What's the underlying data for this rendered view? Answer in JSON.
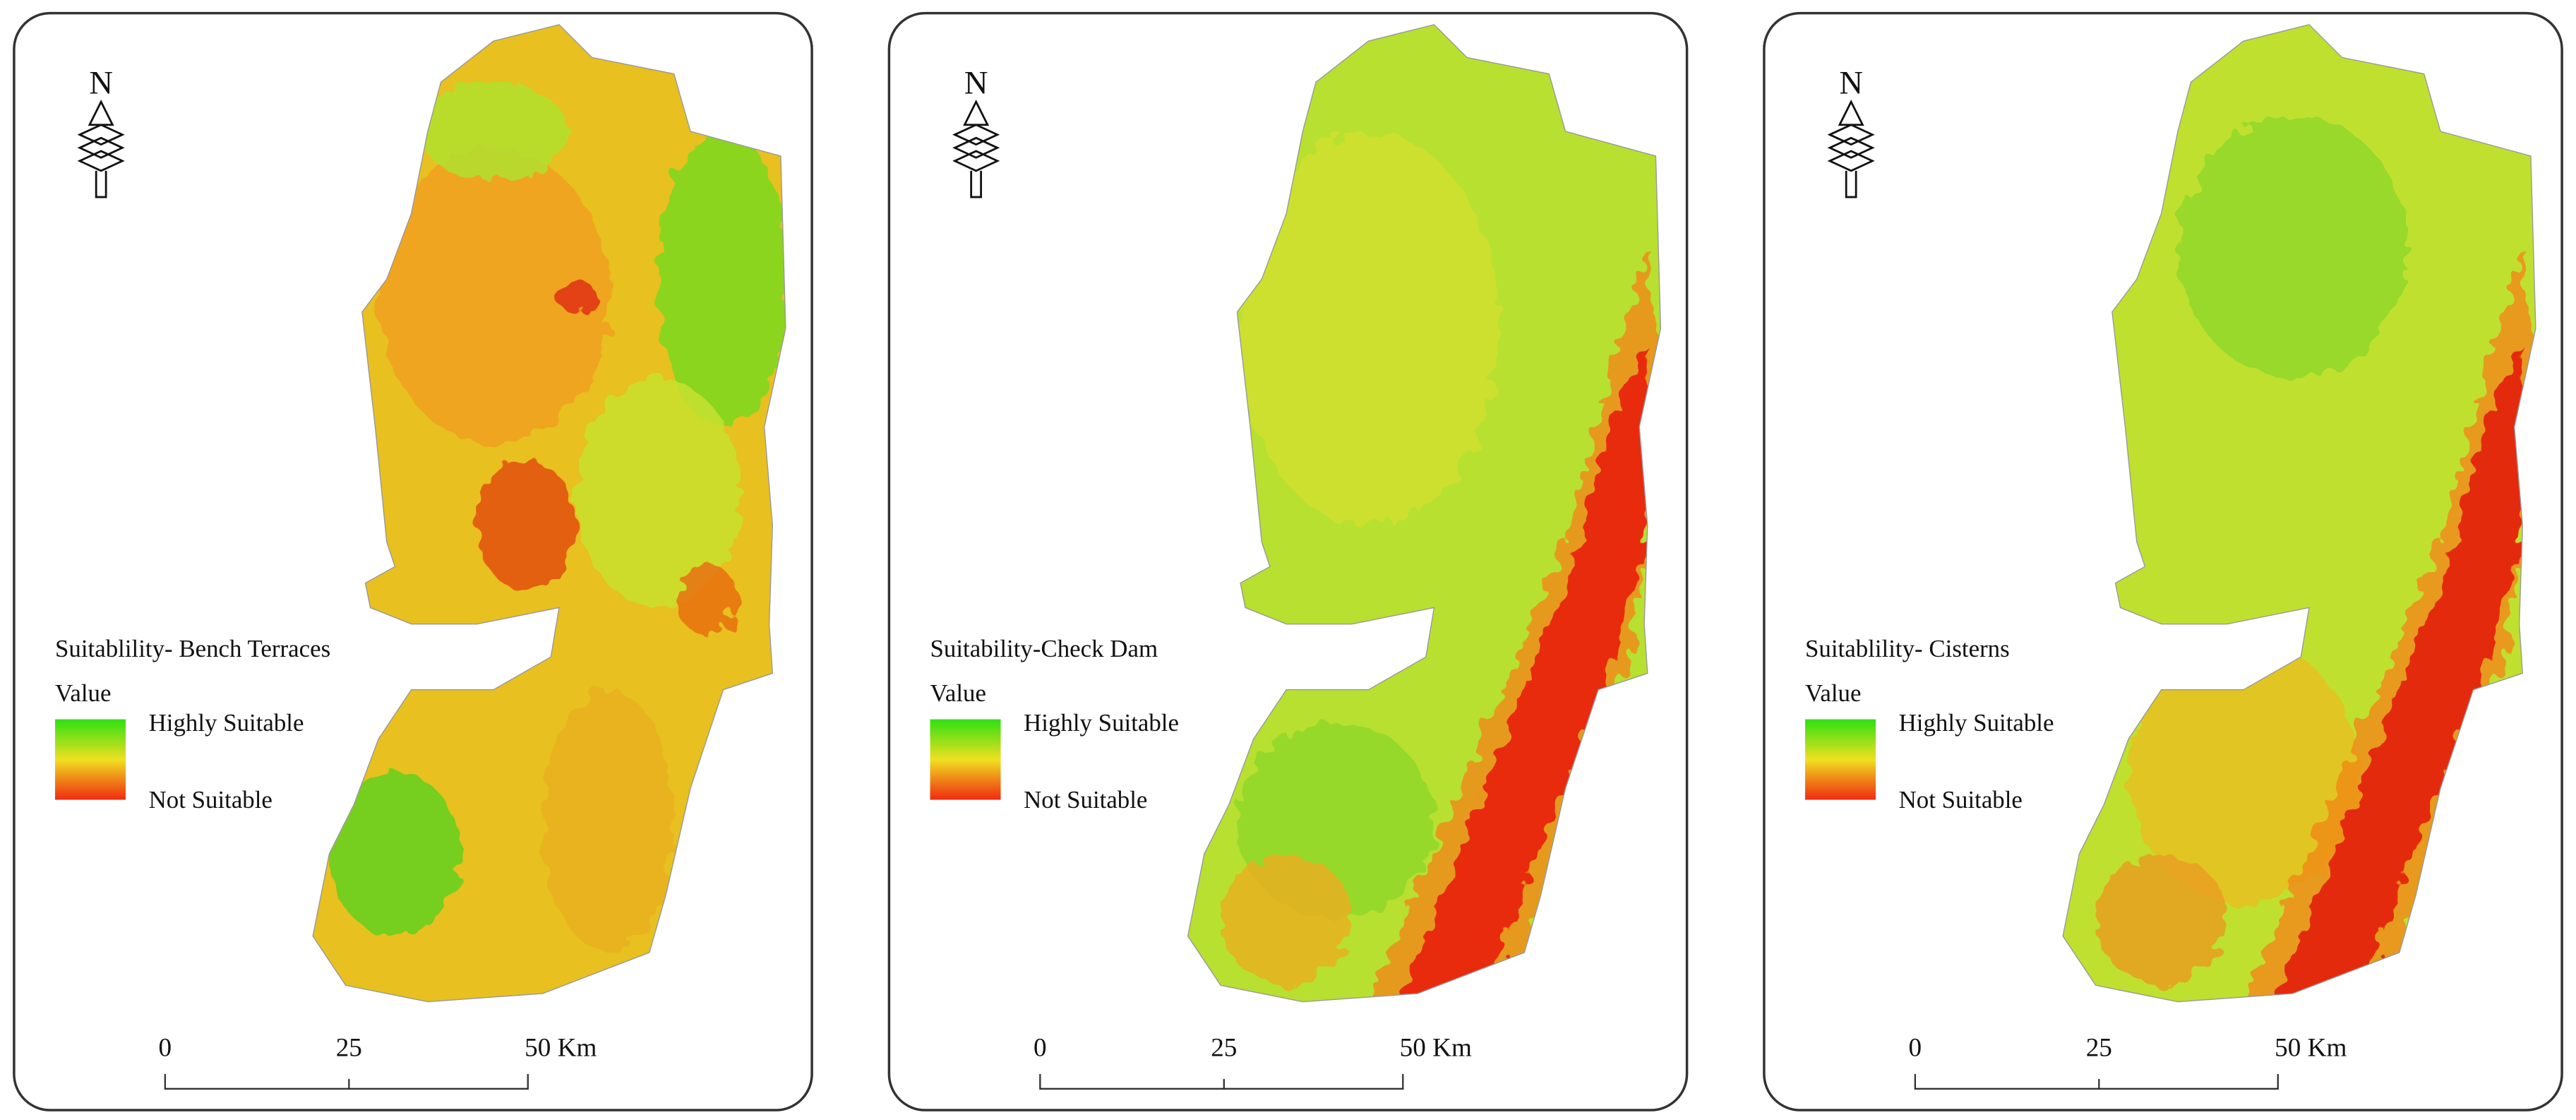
{
  "panels": [
    {
      "title": "Suitablility- Bench Terraces",
      "legend_heading": "Value",
      "legend_high": "Highly Suitable",
      "legend_low": "Not Suitable",
      "north": "N",
      "scale": [
        "0",
        "25",
        "50 Km"
      ]
    },
    {
      "title": "Suitability-Check Dam",
      "legend_heading": "Value",
      "legend_high": "Highly Suitable",
      "legend_low": "Not Suitable",
      "north": "N",
      "scale": [
        "0",
        "25",
        "50 Km"
      ]
    },
    {
      "title": "Suitablility- Cisterns",
      "legend_heading": "Value",
      "legend_high": "Highly Suitable",
      "legend_low": "Not Suitable",
      "north": "N",
      "scale": [
        "0",
        "25",
        "50 Km"
      ]
    }
  ]
}
